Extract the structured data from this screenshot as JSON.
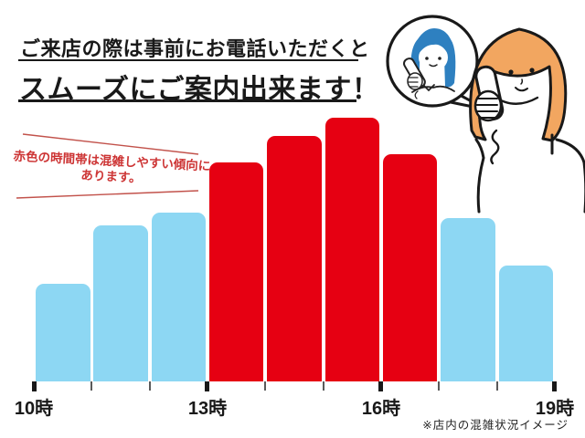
{
  "header": {
    "line1": "ご来店の際は事前にお電話いただくと",
    "line2": "スムーズにご案内出来ます！"
  },
  "annotation": {
    "line1": "赤色の時間帯は混雑しやすい傾向に",
    "line2": "あります。"
  },
  "footnote": "※店内の混雑状況イメージ",
  "illustration": {
    "description": "customer-on-phone-with-staff-in-speech-bubble",
    "bubble_person": "staff-answering-phone",
    "right_person": "customer-calling"
  },
  "colors": {
    "busy_red": "#e60012",
    "calm_blue": "#8dd7f3",
    "ink": "#191919",
    "annotation_red": "#cd3535",
    "annotation_line_red": "#c2524b",
    "staff_hair_blue": "#2e80c0",
    "customer_hair_orange": "#f2a660"
  },
  "chart_data": {
    "type": "bar",
    "title": "",
    "xlabel": "",
    "ylabel": "",
    "categories": [
      "10-11時",
      "11-12時",
      "12-13時",
      "13-14時",
      "14-15時",
      "15-16時",
      "16-17時",
      "17-18時",
      "18-19時"
    ],
    "values": [
      37,
      59,
      64,
      83,
      93,
      100,
      86,
      62,
      44
    ],
    "bar_colors": [
      "calm_blue",
      "calm_blue",
      "calm_blue",
      "busy_red",
      "busy_red",
      "busy_red",
      "busy_red",
      "calm_blue",
      "calm_blue"
    ],
    "x_tick_labels": [
      "10時",
      "13時",
      "16時",
      "19時"
    ],
    "major_tick_indices": [
      0,
      3,
      6,
      9
    ],
    "ylim": [
      0,
      100
    ],
    "grid": false,
    "legend": "none"
  }
}
